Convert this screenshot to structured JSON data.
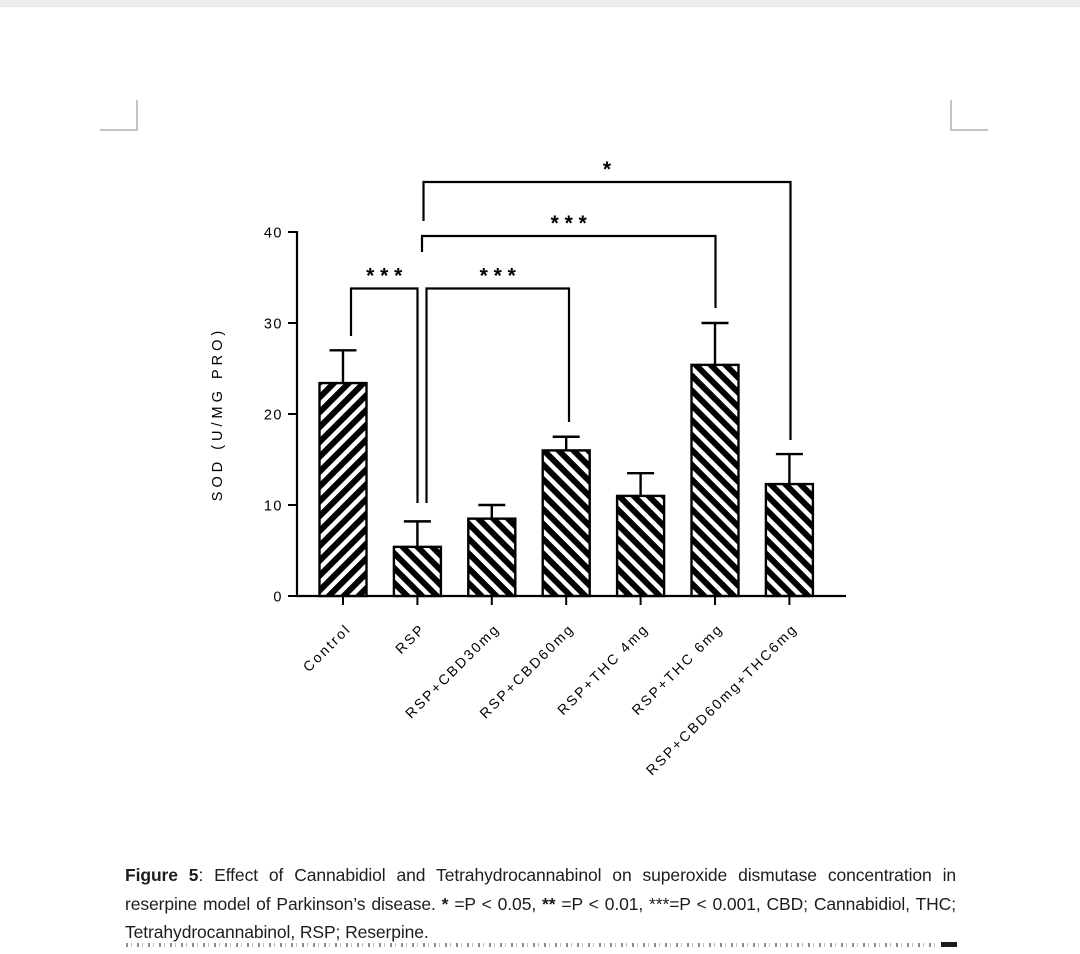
{
  "page": {
    "background": "#ffffff",
    "top_strip_color": "#ededed",
    "corner_mark_color": "#c3c3c3"
  },
  "figure": {
    "caption": {
      "label_bold": "Figure 5",
      "body_1": ": Effect of Cannabidiol and Tetrahydrocannabinol on superoxide dismutase concentration in reserpine model of Parkinson’s disease. ",
      "star1": "*",
      "body_2": " =P < 0.05, ",
      "star2": "**",
      "body_3": " =P < 0.01, ***=P < 0.001, CBD; Cannabidiol, THC; Tetrahydrocannabinol, RSP; Reserpine."
    }
  },
  "chart_data": {
    "type": "bar",
    "title": "",
    "xlabel": "",
    "ylabel": "SOD (U/MG PRO)",
    "ylim": [
      0,
      40
    ],
    "yticks": [
      0,
      10,
      20,
      30,
      40
    ],
    "grid": false,
    "legend_position": "none",
    "bar_style": "black-diagonal-hatch-on-white",
    "ink_color": "#000000",
    "categories": [
      "Control",
      "RSP",
      "RSP+CBD30mg",
      "RSP+CBD60mg",
      "RSP+THC 4mg",
      "RSP+THC 6mg",
      "RSP+CBD60mg+THC6mg"
    ],
    "values": [
      23.4,
      5.4,
      8.5,
      16.0,
      11.0,
      25.4,
      12.3
    ],
    "errors_up": [
      3.6,
      2.8,
      1.5,
      1.5,
      2.5,
      4.6,
      3.3
    ],
    "hatch_directions": [
      "\\",
      "/",
      "/",
      "/",
      "/",
      "/",
      "/"
    ],
    "significance": [
      {
        "from": "RSP",
        "to": "RSP+CBD60mg+THC6mg",
        "label": "*"
      },
      {
        "from": "RSP",
        "to": "RSP+THC 6mg",
        "label": "***"
      },
      {
        "from": "Control",
        "to": "RSP",
        "label": "***"
      },
      {
        "from": "RSP",
        "to": "RSP+CBD60mg",
        "label": "***"
      }
    ]
  }
}
